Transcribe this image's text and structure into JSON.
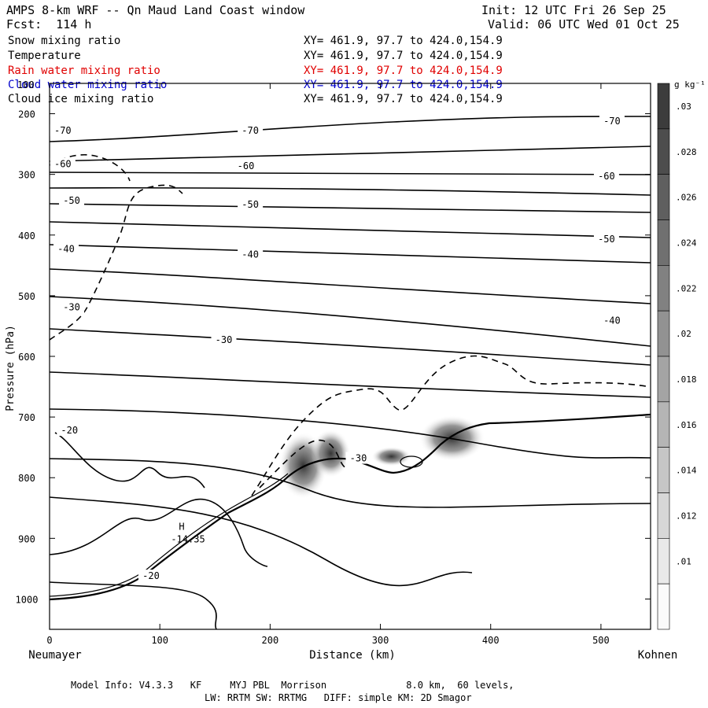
{
  "header": {
    "title": "AMPS 8-km WRF -- Qn Maud Land Coast window",
    "fcst": "Fcst:  114 h",
    "init": "Init: 12 UTC Fri 26 Sep 25",
    "valid": "Valid: 06 UTC Wed 01 Oct 25"
  },
  "variables": [
    {
      "name": "Snow mixing ratio",
      "xy": "XY= 461.9, 97.7 to 424.0,154.9",
      "color": "#000000"
    },
    {
      "name": "Temperature",
      "xy": "XY= 461.9, 97.7 to 424.0,154.9",
      "color": "#000000"
    },
    {
      "name": "Rain water mixing ratio",
      "xy": "XY= 461.9, 97.7 to 424.0,154.9",
      "color": "#e00000"
    },
    {
      "name": "Cloud water mixing ratio",
      "xy": "XY= 461.9, 97.7 to 424.0,154.9",
      "color": "#0000cc"
    },
    {
      "name": "Cloud ice mixing ratio",
      "xy": "XY= 461.9, 97.7 to 424.0,154.9",
      "color": "#000000"
    }
  ],
  "overlap_label": "100",
  "axes": {
    "xlabel": "Distance (km)",
    "ylabel": "Pressure (hPa)",
    "left_station": "Neumayer",
    "right_station": "Kohnen"
  },
  "footer": {
    "line1": "Model Info: V4.3.3   KF     MYJ PBL  Morrison              8.0 km,  60 levels,",
    "line2": "LW: RRTM SW: RRTMG   DIFF: simple KM: 2D Smagor"
  },
  "chart_data": {
    "type": "contour",
    "x_range": [
      0,
      545
    ],
    "y_range_hpa": [
      150,
      1050
    ],
    "x_ticks": [
      0,
      100,
      200,
      300,
      400,
      500
    ],
    "y_ticks": [
      200,
      300,
      400,
      500,
      600,
      700,
      800,
      900,
      1000
    ],
    "colorbar": {
      "unit": "g kg⁻¹",
      "ticks": [
        ".03",
        ".028",
        ".026",
        ".024",
        ".022",
        ".02",
        ".018",
        ".016",
        ".014",
        ".012",
        ".01"
      ],
      "values": [
        0.03,
        0.028,
        0.026,
        0.024,
        0.022,
        0.02,
        0.018,
        0.016,
        0.014,
        0.012,
        0.01
      ]
    },
    "temperature_contours": [
      {
        "label": "-70",
        "x": 12,
        "p": 228
      },
      {
        "label": "-70",
        "x": 182,
        "p": 228
      },
      {
        "label": "-70",
        "x": 510,
        "p": 212
      },
      {
        "label": "-60",
        "x": 12,
        "p": 283
      },
      {
        "label": "-60",
        "x": 178,
        "p": 286
      },
      {
        "label": "-60",
        "x": 505,
        "p": 303
      },
      {
        "label": "-50",
        "x": 20,
        "p": 343
      },
      {
        "label": "-50",
        "x": 182,
        "p": 350
      },
      {
        "label": "-50",
        "x": 505,
        "p": 407
      },
      {
        "label": "-40",
        "x": 15,
        "p": 423
      },
      {
        "label": "-40",
        "x": 182,
        "p": 432
      },
      {
        "label": "-40",
        "x": 510,
        "p": 541
      },
      {
        "label": "-30",
        "x": 20,
        "p": 519
      },
      {
        "label": "-30",
        "x": 158,
        "p": 573
      },
      {
        "label": "-30",
        "x": 280,
        "p": 768
      },
      {
        "label": "-20",
        "x": 18,
        "p": 722
      },
      {
        "label": "-20",
        "x": 92,
        "p": 962
      }
    ],
    "surface_high": {
      "label": "H",
      "value": "-14.35",
      "x": 117,
      "p": 891
    },
    "shaded_cells": [
      {
        "x": 230,
        "p": 780,
        "rx": 22,
        "rp": 55,
        "max": 0.028
      },
      {
        "x": 255,
        "p": 760,
        "rx": 18,
        "rp": 40,
        "max": 0.026
      },
      {
        "x": 310,
        "p": 765,
        "rx": 18,
        "rp": 16,
        "max": 0.024
      },
      {
        "x": 365,
        "p": 735,
        "rx": 30,
        "rp": 38,
        "max": 0.03
      }
    ]
  }
}
